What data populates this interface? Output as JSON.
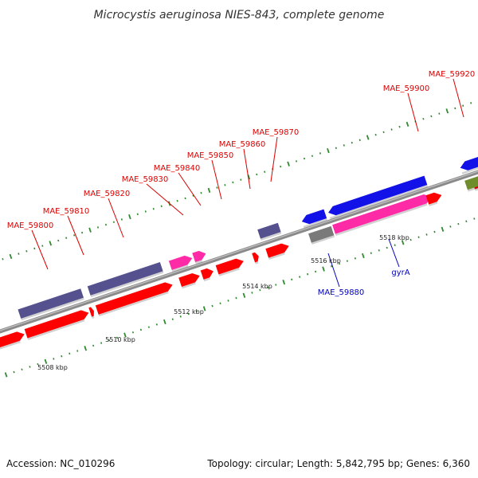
{
  "title": "Microcystis aeruginosa NIES-843, complete genome",
  "footer": {
    "accession": "Accession: NC_010296",
    "summary": "Topology: circular; Length: 5,842,795 bp; Genes: 6,360"
  },
  "colors": {
    "backbone": "#8a8a8a",
    "tick": "#2e8b2e",
    "red": "#ff0000",
    "purple": "#55508e",
    "magenta": "#ff2aa6",
    "blue": "#1212e8",
    "gray": "#7a7a7a",
    "olive": "#6f8d2a",
    "label_red": "#dd0000",
    "label_blue": "#0000bb"
  },
  "scale_labels": [
    "5508 kbp",
    "5510 kbp",
    "5512 kbp",
    "5514 kbp",
    "5516 kbp",
    "5518 kbp"
  ],
  "gene_labels_top": [
    "MAE_59800",
    "MAE_59810",
    "MAE_59820",
    "MAE_59830",
    "MAE_59840",
    "MAE_59850",
    "MAE_59860",
    "MAE_59870",
    "MAE_59900",
    "MAE_59920"
  ],
  "gene_labels_bottom": [
    "MAE_59880",
    "gyrA"
  ]
}
